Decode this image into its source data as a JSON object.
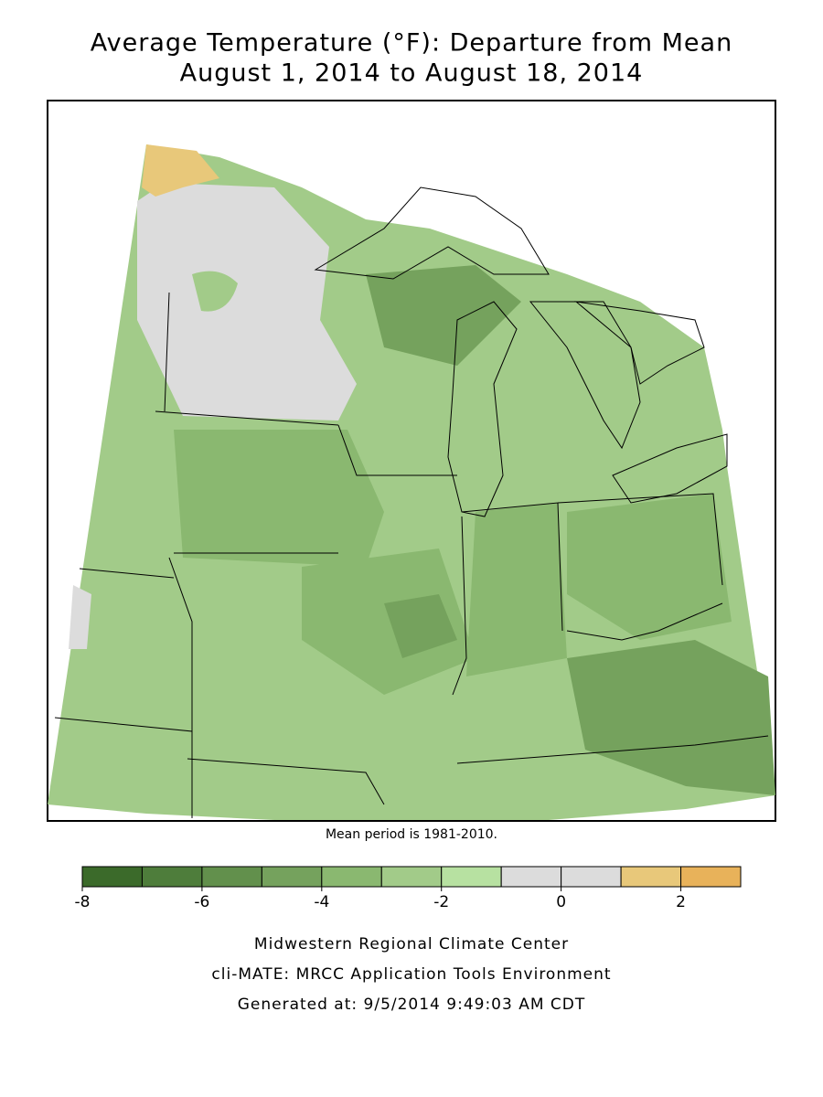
{
  "title": [
    "Average Temperature (°F): Departure from Mean",
    "August 1, 2014 to August 18, 2014"
  ],
  "note": "Mean period is 1981-2010.",
  "legend": {
    "bins": [
      -8,
      -7,
      -6,
      -5,
      -4,
      -3,
      -2,
      -1,
      0,
      1,
      2,
      3
    ],
    "colors": [
      "#3b6a2a",
      "#4e7d3b",
      "#62904c",
      "#75a25d",
      "#8ab870",
      "#a2cb89",
      "#b7e1a1",
      "#dcdcdc",
      "#dcdcdc",
      "#e8c87a",
      "#e8b25a"
    ],
    "ticks": [
      -8,
      -6,
      -4,
      -2,
      0,
      2
    ]
  },
  "footer": [
    "Midwestern Regional Climate Center",
    "cli-MATE: MRCC Application Tools Environment",
    "Generated at: 9/5/2014 9:49:03 AM CDT"
  ]
}
